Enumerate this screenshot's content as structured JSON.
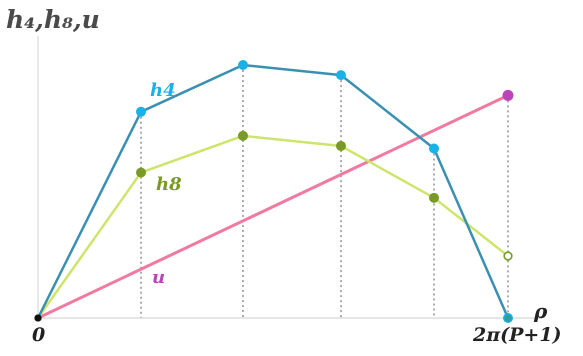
{
  "chart_data": {
    "type": "line",
    "title": "h₄,h₈,u",
    "xlabel": "ρ",
    "x_tick_labels": [
      "0",
      "2π(P+1)"
    ],
    "x": [
      0,
      1,
      2,
      3,
      4,
      5
    ],
    "xlim": [
      0,
      5
    ],
    "ylim": [
      0,
      1
    ],
    "grid": false,
    "vertical_guides": true,
    "series": [
      {
        "name": "h4",
        "color": "#3a90b0",
        "marker_color": "#1ab0e8",
        "values": [
          0.0,
          0.815,
          1.0,
          0.96,
          0.67,
          0.0
        ],
        "open_markers": [],
        "label_index": 1
      },
      {
        "name": "h8",
        "color": "#cde56a",
        "marker_color": "#7a9a28",
        "values": [
          0.0,
          0.575,
          0.72,
          0.68,
          0.475,
          0.245
        ],
        "open_markers": [
          5
        ],
        "label_index": 1
      },
      {
        "name": "u",
        "color": "#f07aa0",
        "marker_color": "#bb44bb",
        "values": [
          0.0,
          null,
          null,
          null,
          null,
          0.88
        ],
        "open_markers": [],
        "label_index": 1
      }
    ]
  }
}
